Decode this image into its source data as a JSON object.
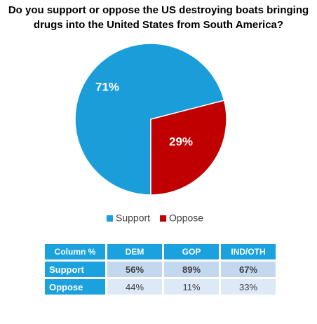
{
  "chart_data": {
    "type": "pie",
    "title": "Do you support or oppose the US destroying boats bringing drugs into the United States from South America?",
    "categories": [
      "Support",
      "Oppose"
    ],
    "values": [
      71,
      29
    ],
    "value_labels": [
      "71%",
      "29%"
    ],
    "colors": [
      "#1b9dd9",
      "#c00000"
    ]
  },
  "table": {
    "header": [
      "Column %",
      "DEM",
      "GOP",
      "IND/OTH"
    ],
    "rows": [
      [
        "Support",
        "56%",
        "89%",
        "67%"
      ],
      [
        "Oppose",
        "44%",
        "11%",
        "33%"
      ]
    ]
  }
}
